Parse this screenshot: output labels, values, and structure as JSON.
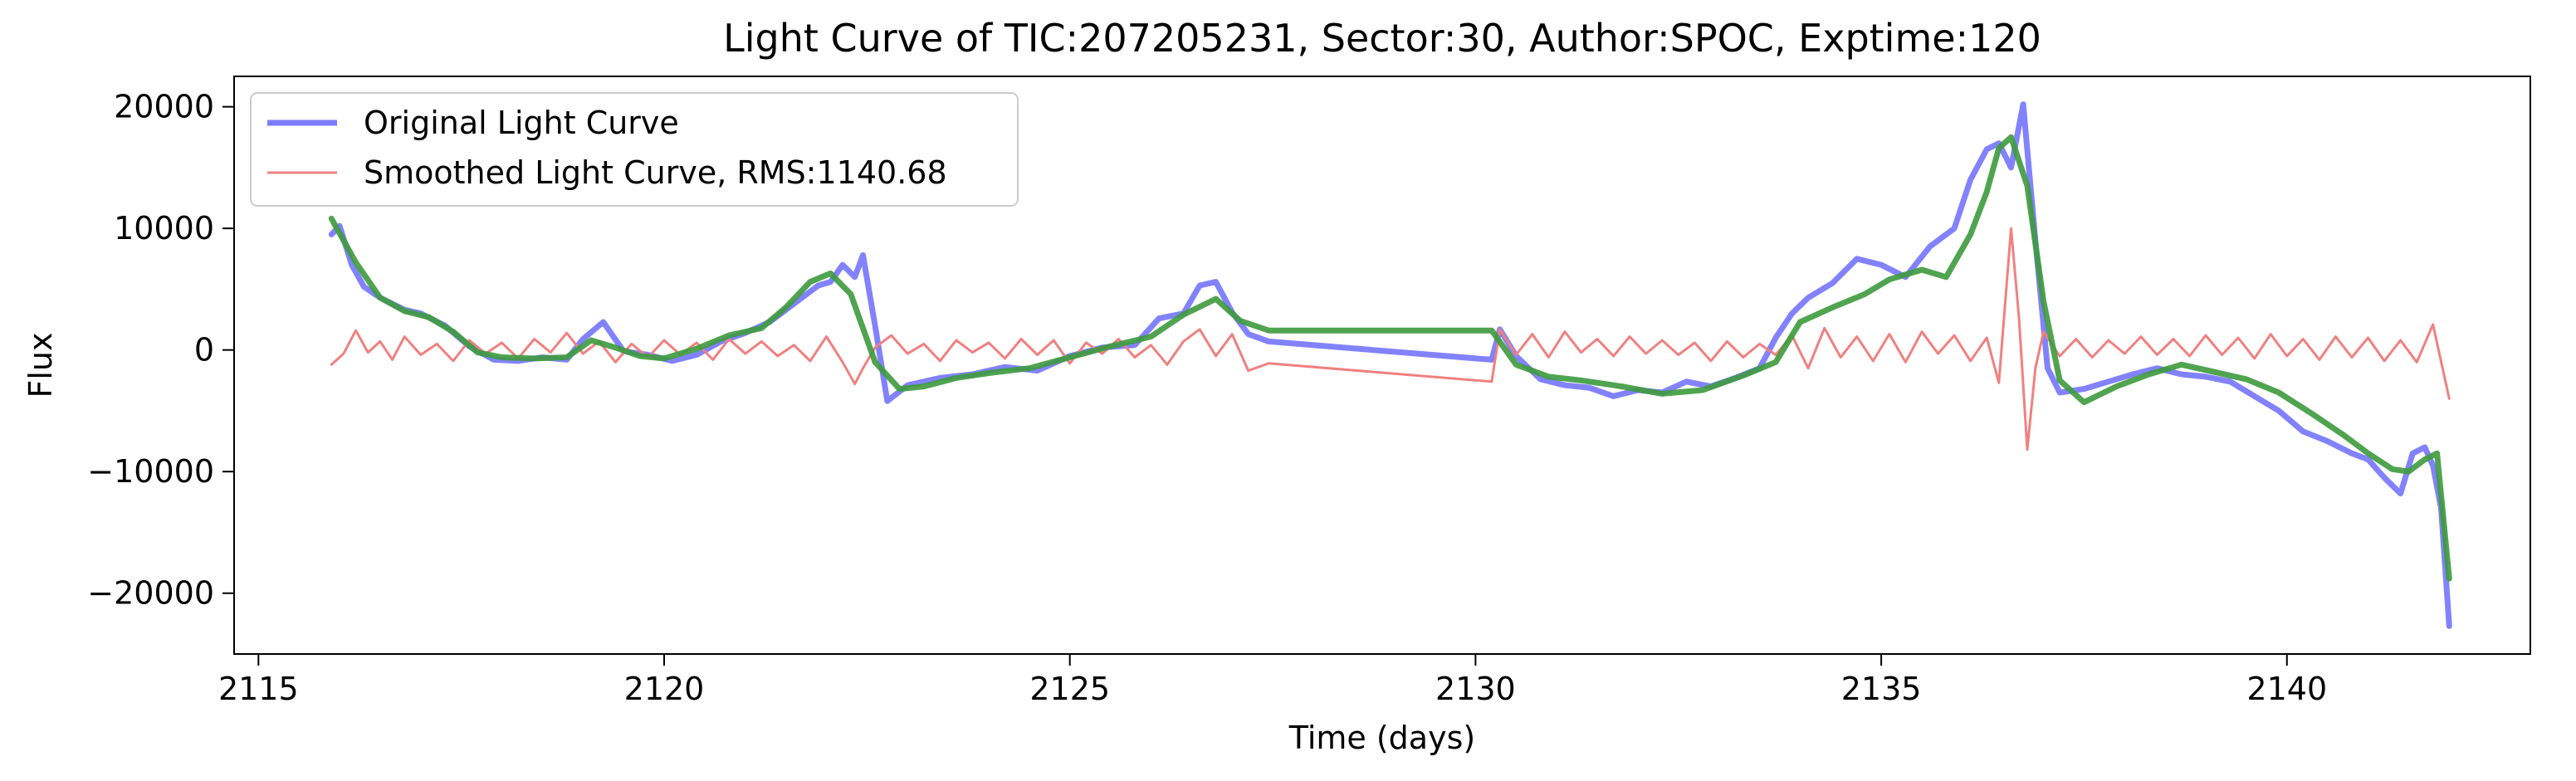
{
  "chart_data": {
    "type": "line",
    "title": "Light Curve of TIC:207205231, Sector:30, Author:SPOC, Exptime:120",
    "xlabel": "Time (days)",
    "ylabel": "Flux",
    "xlim": [
      2114.7,
      2143.0
    ],
    "ylim": [
      -25000,
      22500
    ],
    "xticks": [
      2115,
      2120,
      2125,
      2130,
      2135,
      2140
    ],
    "yticks": [
      -20000,
      -10000,
      0,
      10000,
      20000
    ],
    "xtick_labels": [
      "2115",
      "2120",
      "2125",
      "2130",
      "2135",
      "2140"
    ],
    "ytick_labels": [
      "−20000",
      "−10000",
      "0",
      "10000",
      "20000"
    ],
    "grid": false,
    "legend_position": "upper-left",
    "series": [
      {
        "name": "Original Light Curve",
        "color": "#7b7bff",
        "x": [
          2115.9,
          2116.0,
          2116.15,
          2116.3,
          2116.5,
          2116.8,
          2117.0,
          2117.3,
          2117.6,
          2117.9,
          2118.2,
          2118.5,
          2118.8,
          2119.0,
          2119.25,
          2119.5,
          2119.8,
          2120.1,
          2120.4,
          2120.7,
          2121.0,
          2121.3,
          2121.6,
          2121.9,
          2122.05,
          2122.2,
          2122.35,
          2122.45,
          2122.6,
          2122.75,
          2123.0,
          2123.4,
          2123.8,
          2124.2,
          2124.6,
          2125.0,
          2125.4,
          2125.8,
          2126.1,
          2126.4,
          2126.6,
          2126.8,
          2127.0,
          2127.2,
          2127.45,
          2130.2,
          2130.3,
          2130.5,
          2130.8,
          2131.1,
          2131.4,
          2131.7,
          2132.0,
          2132.3,
          2132.6,
          2132.9,
          2133.2,
          2133.5,
          2133.7,
          2133.9,
          2134.1,
          2134.4,
          2134.7,
          2135.0,
          2135.3,
          2135.6,
          2135.9,
          2136.1,
          2136.3,
          2136.45,
          2136.6,
          2136.75,
          2136.9,
          2137.05,
          2137.2,
          2137.5,
          2137.8,
          2138.1,
          2138.4,
          2138.7,
          2139.0,
          2139.3,
          2139.6,
          2139.9,
          2140.2,
          2140.5,
          2140.8,
          2141.0,
          2141.2,
          2141.4,
          2141.55,
          2141.7,
          2141.8,
          2141.9,
          2142.0
        ],
        "y": [
          9500,
          10200,
          7000,
          5200,
          4300,
          3300,
          3000,
          2000,
          300,
          -800,
          -900,
          -600,
          -800,
          900,
          2300,
          -100,
          -400,
          -900,
          -400,
          700,
          1400,
          2300,
          3800,
          5300,
          5600,
          7000,
          6000,
          7800,
          2000,
          -4200,
          -2900,
          -2300,
          -2000,
          -1400,
          -1700,
          -500,
          200,
          400,
          2600,
          3000,
          5300,
          5600,
          3100,
          1300,
          700,
          -800,
          1700,
          -500,
          -2400,
          -2900,
          -3100,
          -3800,
          -3300,
          -3500,
          -2600,
          -3000,
          -2300,
          -1500,
          1000,
          3000,
          4300,
          5500,
          7500,
          7000,
          6000,
          8500,
          10000,
          14000,
          16500,
          17000,
          15000,
          20200,
          9000,
          -1500,
          -3500,
          -3200,
          -2600,
          -2000,
          -1500,
          -2000,
          -2200,
          -2600,
          -3800,
          -5000,
          -6700,
          -7500,
          -8500,
          -9000,
          -10500,
          -11800,
          -8500,
          -8000,
          -9500,
          -13000,
          -22700
        ]
      },
      {
        "name": "Smoothed Light Curve, RMS:1140.68",
        "color": "#f08080",
        "x": [
          2115.9,
          2116.05,
          2116.2,
          2116.35,
          2116.5,
          2116.65,
          2116.8,
          2117.0,
          2117.2,
          2117.4,
          2117.6,
          2117.8,
          2118.0,
          2118.2,
          2118.4,
          2118.6,
          2118.8,
          2119.0,
          2119.2,
          2119.4,
          2119.6,
          2119.8,
          2120.0,
          2120.2,
          2120.4,
          2120.6,
          2120.8,
          2121.0,
          2121.2,
          2121.4,
          2121.6,
          2121.8,
          2122.0,
          2122.2,
          2122.35,
          2122.45,
          2122.6,
          2122.8,
          2123.0,
          2123.2,
          2123.4,
          2123.6,
          2123.8,
          2124.0,
          2124.2,
          2124.4,
          2124.6,
          2124.8,
          2125.0,
          2125.2,
          2125.4,
          2125.6,
          2125.8,
          2126.0,
          2126.2,
          2126.4,
          2126.6,
          2126.8,
          2127.0,
          2127.2,
          2127.45,
          2130.2,
          2130.3,
          2130.5,
          2130.7,
          2130.9,
          2131.1,
          2131.3,
          2131.5,
          2131.7,
          2131.9,
          2132.1,
          2132.3,
          2132.5,
          2132.7,
          2132.9,
          2133.1,
          2133.3,
          2133.5,
          2133.7,
          2133.9,
          2134.1,
          2134.3,
          2134.5,
          2134.7,
          2134.9,
          2135.1,
          2135.3,
          2135.5,
          2135.7,
          2135.9,
          2136.1,
          2136.3,
          2136.45,
          2136.6,
          2136.7,
          2136.8,
          2136.9,
          2137.0,
          2137.2,
          2137.4,
          2137.6,
          2137.8,
          2138.0,
          2138.2,
          2138.4,
          2138.6,
          2138.8,
          2139.0,
          2139.2,
          2139.4,
          2139.6,
          2139.8,
          2140.0,
          2140.2,
          2140.4,
          2140.6,
          2140.8,
          2141.0,
          2141.2,
          2141.4,
          2141.6,
          2141.8,
          2142.0
        ],
        "y": [
          -1200,
          -300,
          1600,
          -200,
          700,
          -800,
          1100,
          -400,
          500,
          -900,
          800,
          -300,
          600,
          -700,
          900,
          -200,
          1400,
          -300,
          700,
          -1000,
          500,
          -600,
          800,
          -400,
          600,
          -800,
          900,
          -300,
          700,
          -500,
          400,
          -900,
          1100,
          -1000,
          -2800,
          -1500,
          200,
          1200,
          -300,
          500,
          -900,
          800,
          -200,
          600,
          -700,
          900,
          -400,
          800,
          -1100,
          600,
          -300,
          900,
          -600,
          400,
          -1200,
          700,
          1700,
          -500,
          1300,
          -1700,
          -1100,
          -2600,
          1700,
          -400,
          1300,
          -600,
          1500,
          -200,
          900,
          -500,
          1100,
          -300,
          800,
          -400,
          600,
          -900,
          700,
          -600,
          500,
          -400,
          1200,
          -1500,
          1800,
          -600,
          1100,
          -900,
          1300,
          -1000,
          1500,
          -300,
          1200,
          -900,
          1000,
          -2700,
          10000,
          2500,
          -8200,
          -1500,
          1500,
          -500,
          900,
          -600,
          800,
          -300,
          1100,
          -400,
          900,
          -500,
          1200,
          -400,
          1000,
          -700,
          1300,
          -500,
          900,
          -800,
          1100,
          -600,
          1000,
          -900,
          800,
          -1000,
          2100,
          -4000
        ]
      },
      {
        "name": "",
        "color": "#3d9a3d",
        "x": [
          2115.9,
          2116.2,
          2116.5,
          2116.8,
          2117.1,
          2117.4,
          2117.7,
          2118.0,
          2118.4,
          2118.8,
          2119.1,
          2119.4,
          2119.7,
          2120.0,
          2120.4,
          2120.8,
          2121.2,
          2121.5,
          2121.8,
          2122.05,
          2122.3,
          2122.6,
          2122.9,
          2123.2,
          2123.6,
          2124.0,
          2124.5,
          2125.0,
          2125.5,
          2126.0,
          2126.4,
          2126.8,
          2127.1,
          2127.45,
          2130.2,
          2130.5,
          2130.9,
          2131.3,
          2131.8,
          2132.3,
          2132.8,
          2133.3,
          2133.7,
          2134.0,
          2134.4,
          2134.8,
          2135.1,
          2135.5,
          2135.8,
          2136.1,
          2136.3,
          2136.45,
          2136.6,
          2136.8,
          2137.0,
          2137.2,
          2137.5,
          2137.9,
          2138.3,
          2138.7,
          2139.1,
          2139.5,
          2139.9,
          2140.3,
          2140.7,
          2141.0,
          2141.3,
          2141.5,
          2141.7,
          2141.85,
          2142.0
        ],
        "y": [
          10800,
          7200,
          4300,
          3200,
          2700,
          1500,
          -200,
          -600,
          -700,
          -600,
          800,
          200,
          -500,
          -700,
          100,
          1200,
          1800,
          3500,
          5600,
          6300,
          4600,
          -1000,
          -3200,
          -3000,
          -2300,
          -1900,
          -1500,
          -600,
          300,
          1100,
          2900,
          4200,
          2400,
          1600,
          1600,
          -1200,
          -2200,
          -2500,
          -3000,
          -3600,
          -3300,
          -2100,
          -1000,
          2300,
          3500,
          4600,
          5800,
          6600,
          6000,
          9500,
          13000,
          16600,
          17500,
          13500,
          4000,
          -2500,
          -4300,
          -3000,
          -2000,
          -1200,
          -1800,
          -2400,
          -3500,
          -5200,
          -7000,
          -8500,
          -9800,
          -10000,
          -9000,
          -8500,
          -18800
        ]
      }
    ]
  }
}
